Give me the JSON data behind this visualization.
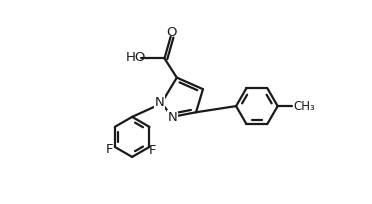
{
  "bg_color": "#ffffff",
  "line_color": "#1a1a1a",
  "line_width": 1.6,
  "font_size": 9.5,
  "figsize": [
    3.72,
    2.04
  ],
  "dpi": 100,
  "xlim": [
    0,
    3.72
  ],
  "ylim": [
    0,
    2.04
  ]
}
